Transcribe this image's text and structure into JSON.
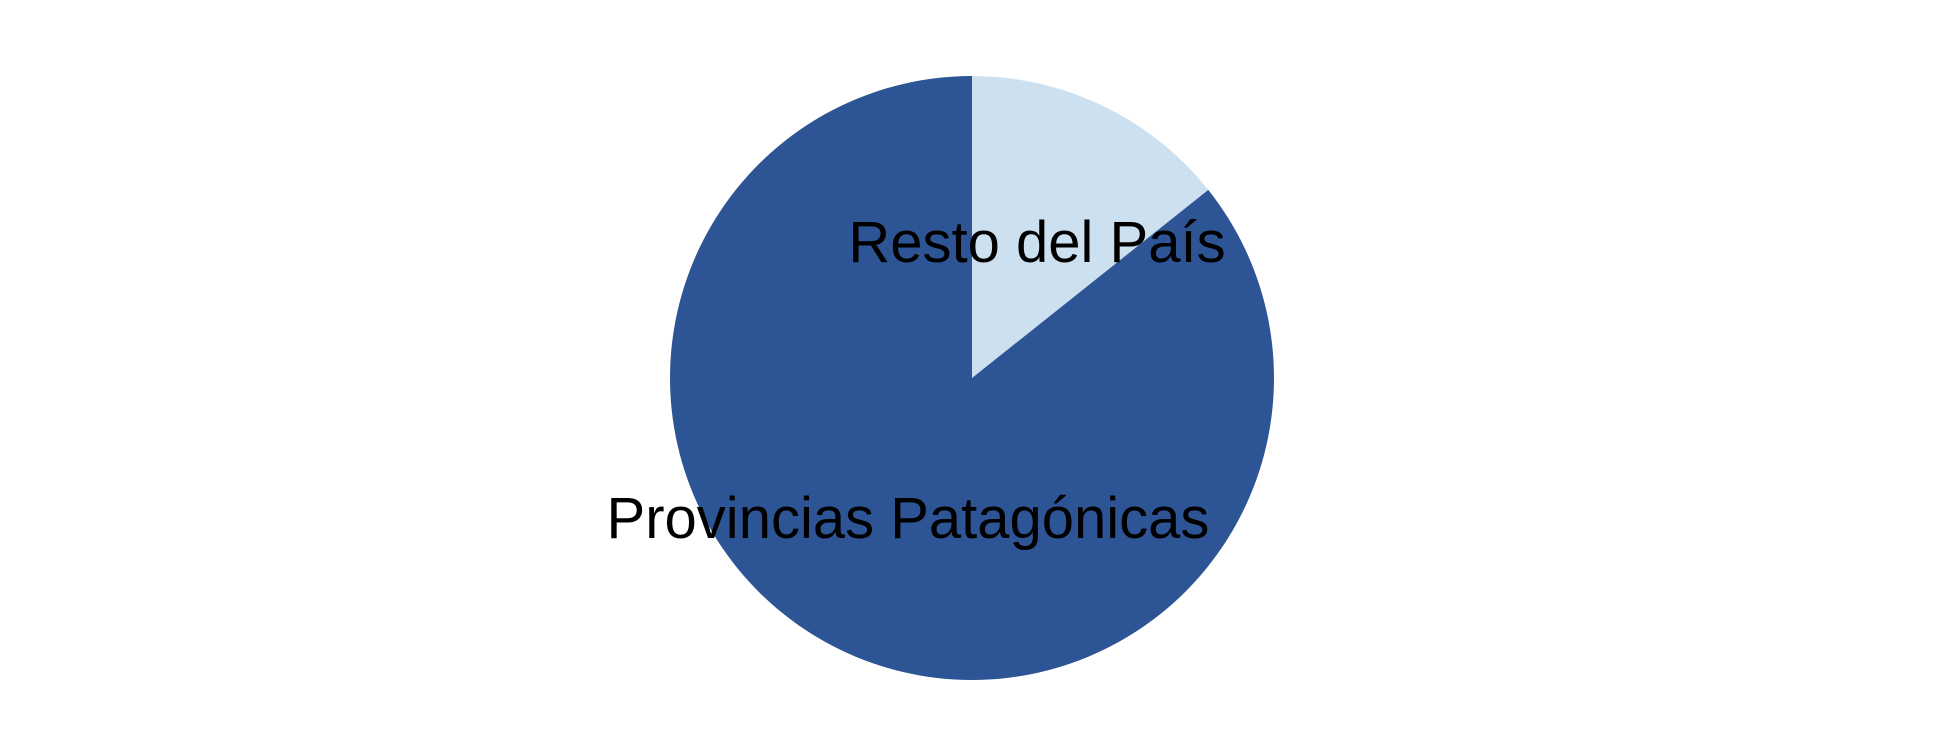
{
  "chart_data": {
    "type": "pie",
    "title": "",
    "start_angle_deg": 0,
    "direction": "clockwise",
    "slices": [
      {
        "label": "Resto del País",
        "value": 14.3,
        "color": "#cde0f0"
      },
      {
        "label": "Provincias Patagónicas",
        "value": 85.7,
        "color": "#2d5595"
      }
    ]
  }
}
